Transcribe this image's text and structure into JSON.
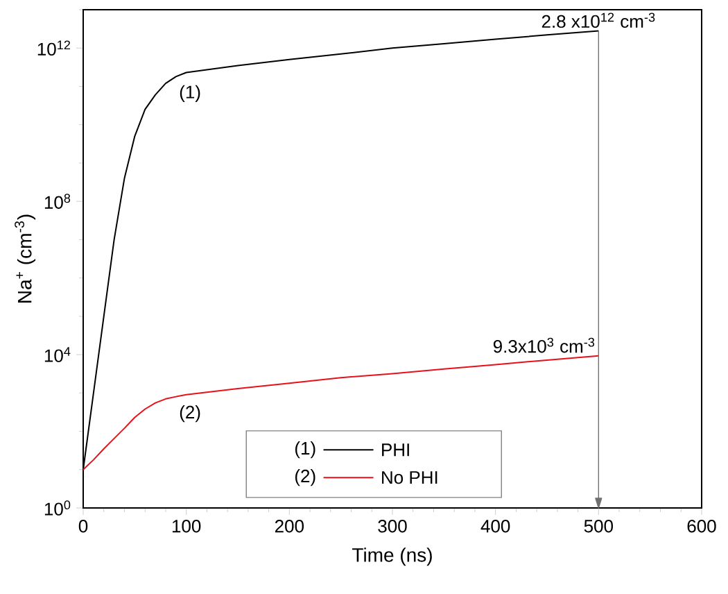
{
  "chart_data": {
    "type": "line",
    "xlabel": "Time (ns)",
    "ylabel": "Na$^{+}$ (cm$^{-3}$)",
    "xlim": [
      0,
      600
    ],
    "xticks": [
      0,
      100,
      200,
      300,
      400,
      500,
      600
    ],
    "ylim": [
      1,
      10000000000000.0
    ],
    "yticks": [
      {
        "value": 1,
        "label": "10$^{0}$"
      },
      {
        "value": 10000,
        "label": "10$^{4}$"
      },
      {
        "value": 100000000,
        "label": "10$^{8}$"
      },
      {
        "value": 1000000000000,
        "label": "10$^{12}$"
      }
    ],
    "log": "y",
    "legend": "bottom",
    "line_style": "solid",
    "series": [
      {
        "name": "PHI",
        "color": "#000000",
        "x": [
          0,
          10,
          20,
          30,
          40,
          50,
          60,
          70,
          80,
          90,
          100,
          150,
          200,
          250,
          300,
          350,
          400,
          450,
          500
        ],
        "values": [
          10,
          1000.0,
          100000.0,
          10000000.0,
          400000000.0,
          5000000000.0,
          25000000000.0,
          60000000000.0,
          120000000000.0,
          180000000000.0,
          230000000000.0,
          350000000000.0,
          500000000000.0,
          700000000000.0,
          1000000000000.0,
          1300000000000.0,
          1700000000000.0,
          2200000000000.0,
          2800000000000.0
        ]
      },
      {
        "name": "No PHI",
        "color": "#e8101a",
        "x": [
          0,
          10,
          20,
          30,
          40,
          50,
          60,
          70,
          80,
          90,
          100,
          150,
          200,
          250,
          300,
          350,
          400,
          450,
          500
        ],
        "values": [
          10,
          18,
          35,
          65,
          120,
          230,
          380,
          550,
          700,
          800,
          900,
          1300,
          1800,
          2500,
          3200,
          4200,
          5500,
          7200,
          9300
        ]
      }
    ],
    "ref_lines": [
      {
        "axis": "x",
        "value": 500,
        "color": "#707070"
      }
    ],
    "annotations": [
      "(1)",
      "(2)",
      {
        "text": "2.8 x10$^{12}$ cm$^{-3}$",
        "x": 500,
        "y": 2800000000000.0
      },
      {
        "text": "9.3x10$^{3}$ cm$^{-3}$",
        "x": 500,
        "y": 9300
      },
      "(1)",
      "(2)"
    ]
  }
}
